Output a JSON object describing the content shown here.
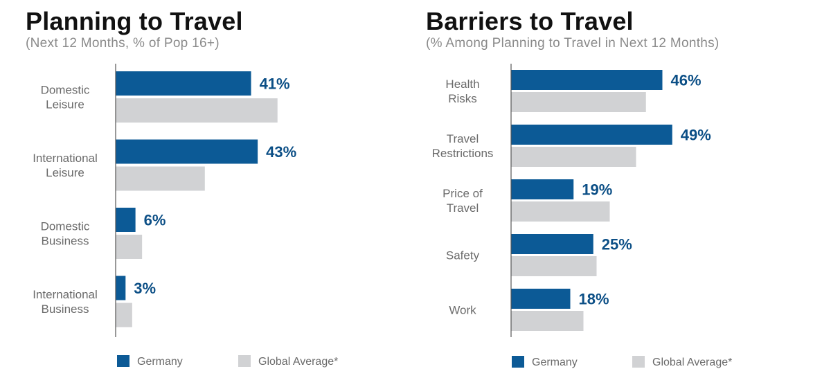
{
  "colors": {
    "germany": "#0c5a96",
    "global": "#d1d2d4",
    "value_label": "#0c4f86",
    "axis": "#555555"
  },
  "chart_data": [
    {
      "type": "bar",
      "orientation": "horizontal",
      "title": "Planning to Travel",
      "subtitle": "(Next 12 Months, % of Pop 16+)",
      "categories": [
        [
          "Domestic",
          "Leisure"
        ],
        [
          "International",
          "Leisure"
        ],
        [
          "Domestic",
          "Business"
        ],
        [
          "International",
          "Business"
        ]
      ],
      "series": [
        {
          "name": "Germany",
          "values": [
            41,
            43,
            6,
            3
          ],
          "labels": [
            "41%",
            "43%",
            "6%",
            "3%"
          ]
        },
        {
          "name": "Global Average*",
          "values": [
            49,
            27,
            8,
            5
          ]
        }
      ],
      "xlim": [
        0,
        60
      ],
      "grid": false,
      "legend": "bottom"
    },
    {
      "type": "bar",
      "orientation": "horizontal",
      "title": "Barriers to Travel",
      "subtitle": "(% Among Planning to Travel in Next 12 Months)",
      "categories": [
        [
          "Health",
          "Risks"
        ],
        [
          "Travel",
          "Restrictions"
        ],
        [
          "Price of",
          "Travel"
        ],
        [
          "Safety"
        ],
        [
          "Work"
        ]
      ],
      "series": [
        {
          "name": "Germany",
          "values": [
            46,
            49,
            19,
            25,
            18
          ],
          "labels": [
            "46%",
            "49%",
            "19%",
            "25%",
            "18%"
          ]
        },
        {
          "name": "Global Average*",
          "values": [
            41,
            38,
            30,
            26,
            22
          ]
        }
      ],
      "xlim": [
        0,
        60
      ],
      "grid": false,
      "legend": "bottom"
    }
  ]
}
